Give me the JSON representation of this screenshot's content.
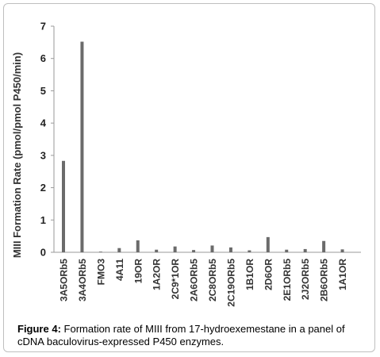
{
  "chart_data": {
    "type": "bar",
    "ylabel": "MIII Formation Rate (pmol/pmol P450/min)",
    "ylim": [
      0,
      7
    ],
    "yticks": [
      0,
      1,
      2,
      3,
      4,
      5,
      6,
      7
    ],
    "categories": [
      "3A5ORb5",
      "3A4ORb5",
      "FMO3",
      "4A11",
      "19OR",
      "1A2OR",
      "2C9*1OR",
      "2A6ORb5",
      "2C8ORb5",
      "2C19ORb5",
      "1B1OR",
      "2D6OR",
      "2E1ORb5",
      "2J2ORb5",
      "2B6ORb5",
      "1A1OR"
    ],
    "values": [
      2.83,
      6.52,
      0.02,
      0.13,
      0.37,
      0.08,
      0.18,
      0.07,
      0.21,
      0.15,
      0.06,
      0.47,
      0.08,
      0.1,
      0.35,
      0.09
    ],
    "bar_color": "#6b6b6b",
    "grid": false
  },
  "caption": {
    "label": "Figure 4:",
    "text": " Formation rate of MIII from 17-hydroexemestane in a panel of cDNA baculovirus-expressed P450 enzymes."
  }
}
